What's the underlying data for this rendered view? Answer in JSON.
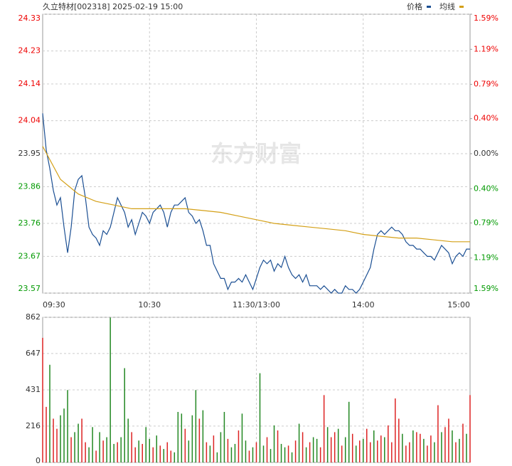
{
  "chart_data": [
    {
      "type": "line",
      "title": "久立特材[002318] 2025-02-19 15:00",
      "watermark": "东方财富",
      "xlim": [
        0,
        240
      ],
      "xticks": [
        {
          "value": 0,
          "label": "09:30"
        },
        {
          "value": 60,
          "label": "10:30"
        },
        {
          "value": 120,
          "label": "11:30/13:00"
        },
        {
          "value": 180,
          "label": "14:00"
        },
        {
          "value": 240,
          "label": "15:00"
        }
      ],
      "ylim": [
        23.57,
        24.33
      ],
      "yticks": [
        24.33,
        24.23,
        24.14,
        24.04,
        23.95,
        23.86,
        23.76,
        23.67,
        23.57
      ],
      "y2lim": [
        -1.59,
        1.59
      ],
      "y2ticks": [
        {
          "value": 1.59,
          "label": "1.59%"
        },
        {
          "value": 1.19,
          "label": "1.19%"
        },
        {
          "value": 0.79,
          "label": "0.79%"
        },
        {
          "value": 0.4,
          "label": "0.40%"
        },
        {
          "value": 0,
          "label": "0.00%"
        },
        {
          "value": -0.4,
          "label": "0.40%"
        },
        {
          "value": -0.79,
          "label": "0.79%"
        },
        {
          "value": -1.19,
          "label": "1.19%"
        },
        {
          "value": -1.59,
          "label": "1.59%"
        }
      ],
      "grid": true,
      "series": [
        {
          "name": "价格",
          "color": "#1b4f93",
          "x": [
            0,
            2,
            4,
            6,
            8,
            10,
            12,
            14,
            16,
            18,
            20,
            22,
            24,
            26,
            28,
            30,
            32,
            34,
            36,
            38,
            40,
            42,
            44,
            46,
            48,
            50,
            52,
            54,
            56,
            58,
            60,
            62,
            64,
            66,
            68,
            70,
            72,
            74,
            76,
            78,
            80,
            82,
            84,
            86,
            88,
            90,
            92,
            94,
            96,
            98,
            100,
            102,
            104,
            106,
            108,
            110,
            112,
            114,
            116,
            118,
            120,
            122,
            124,
            126,
            128,
            130,
            132,
            134,
            136,
            138,
            140,
            142,
            144,
            146,
            148,
            150,
            152,
            154,
            156,
            158,
            160,
            162,
            164,
            166,
            168,
            170,
            172,
            174,
            176,
            178,
            180,
            182,
            184,
            186,
            188,
            190,
            192,
            194,
            196,
            198,
            200,
            202,
            204,
            206,
            208,
            210,
            212,
            214,
            216,
            218,
            220,
            222,
            224,
            226,
            228,
            230,
            232,
            234,
            236,
            238,
            240
          ],
          "values": [
            24.06,
            23.96,
            23.91,
            23.85,
            23.81,
            23.83,
            23.75,
            23.68,
            23.75,
            23.85,
            23.88,
            23.89,
            23.83,
            23.75,
            23.73,
            23.72,
            23.7,
            23.74,
            23.73,
            23.75,
            23.79,
            23.83,
            23.81,
            23.79,
            23.75,
            23.77,
            23.73,
            23.76,
            23.79,
            23.78,
            23.76,
            23.79,
            23.8,
            23.81,
            23.79,
            23.75,
            23.79,
            23.81,
            23.81,
            23.82,
            23.83,
            23.79,
            23.78,
            23.76,
            23.77,
            23.74,
            23.7,
            23.7,
            23.65,
            23.63,
            23.61,
            23.61,
            23.58,
            23.6,
            23.6,
            23.61,
            23.6,
            23.62,
            23.6,
            23.58,
            23.61,
            23.64,
            23.66,
            23.65,
            23.66,
            23.63,
            23.65,
            23.64,
            23.67,
            23.64,
            23.62,
            23.61,
            23.62,
            23.6,
            23.62,
            23.59,
            23.59,
            23.59,
            23.58,
            23.59,
            23.58,
            23.57,
            23.58,
            23.57,
            23.57,
            23.59,
            23.58,
            23.58,
            23.57,
            23.58,
            23.6,
            23.62,
            23.64,
            23.69,
            23.73,
            23.74,
            23.73,
            23.74,
            23.75,
            23.74,
            23.74,
            23.73,
            23.71,
            23.7,
            23.7,
            23.69,
            23.69,
            23.68,
            23.67,
            23.67,
            23.66,
            23.68,
            23.7,
            23.69,
            23.68,
            23.65,
            23.67,
            23.68,
            23.67,
            23.69,
            23.69
          ]
        },
        {
          "name": "均线",
          "color": "#d4a017",
          "x": [
            0,
            10,
            20,
            30,
            40,
            50,
            60,
            70,
            80,
            90,
            100,
            110,
            120,
            130,
            140,
            150,
            160,
            170,
            180,
            190,
            200,
            210,
            220,
            230,
            240
          ],
          "values": [
            23.97,
            23.88,
            23.84,
            23.82,
            23.81,
            23.8,
            23.8,
            23.8,
            23.8,
            23.795,
            23.79,
            23.78,
            23.77,
            23.76,
            23.755,
            23.75,
            23.745,
            23.74,
            23.73,
            23.725,
            23.72,
            23.72,
            23.715,
            23.71,
            23.71
          ]
        }
      ]
    },
    {
      "type": "bar",
      "xlim": [
        0,
        240
      ],
      "ylim": [
        0,
        862
      ],
      "yticks": [
        0,
        216,
        431,
        647,
        862
      ],
      "grid": true,
      "x": [
        0,
        2,
        4,
        6,
        8,
        10,
        12,
        14,
        16,
        18,
        20,
        22,
        24,
        26,
        28,
        30,
        32,
        34,
        36,
        38,
        40,
        42,
        44,
        46,
        48,
        50,
        52,
        54,
        56,
        58,
        60,
        62,
        64,
        66,
        68,
        70,
        72,
        74,
        76,
        78,
        80,
        82,
        84,
        86,
        88,
        90,
        92,
        94,
        96,
        98,
        100,
        102,
        104,
        106,
        108,
        110,
        112,
        114,
        116,
        118,
        120,
        122,
        124,
        126,
        128,
        130,
        132,
        134,
        136,
        138,
        140,
        142,
        144,
        146,
        148,
        150,
        152,
        154,
        156,
        158,
        160,
        162,
        164,
        166,
        168,
        170,
        172,
        174,
        176,
        178,
        180,
        182,
        184,
        186,
        188,
        190,
        192,
        194,
        196,
        198,
        200,
        202,
        204,
        206,
        208,
        210,
        212,
        214,
        216,
        218,
        220,
        222,
        224,
        226,
        228,
        230,
        232,
        234,
        236,
        238,
        240
      ],
      "values": [
        740,
        330,
        580,
        260,
        200,
        280,
        320,
        430,
        150,
        180,
        230,
        260,
        120,
        90,
        210,
        70,
        180,
        130,
        150,
        860,
        110,
        120,
        150,
        560,
        260,
        180,
        90,
        130,
        110,
        210,
        140,
        90,
        160,
        100,
        80,
        120,
        70,
        60,
        300,
        290,
        200,
        130,
        280,
        430,
        260,
        310,
        120,
        100,
        160,
        60,
        180,
        300,
        140,
        90,
        110,
        190,
        290,
        130,
        70,
        90,
        120,
        530,
        100,
        150,
        80,
        220,
        190,
        110,
        90,
        100,
        60,
        130,
        230,
        180,
        90,
        120,
        150,
        140,
        90,
        400,
        210,
        150,
        180,
        200,
        100,
        150,
        360,
        170,
        100,
        130,
        140,
        200,
        120,
        190,
        130,
        160,
        150,
        220,
        120,
        380,
        260,
        170,
        100,
        120,
        190,
        180,
        170,
        140,
        100,
        160,
        120,
        340,
        180,
        210,
        260,
        190,
        120,
        140,
        230,
        170,
        400
      ],
      "colors": [
        "#d22",
        "#d22",
        "#282",
        "#d22",
        "#d22",
        "#282",
        "#282",
        "#282",
        "#d22",
        "#282",
        "#282",
        "#d22",
        "#d22",
        "#282",
        "#282",
        "#d22",
        "#282",
        "#d22",
        "#282",
        "#282",
        "#282",
        "#d22",
        "#282",
        "#282",
        "#282",
        "#d22",
        "#d22",
        "#282",
        "#d22",
        "#282",
        "#282",
        "#d22",
        "#282",
        "#d22",
        "#282",
        "#d22",
        "#d22",
        "#282",
        "#282",
        "#282",
        "#d22",
        "#282",
        "#282",
        "#282",
        "#d22",
        "#282",
        "#d22",
        "#282",
        "#d22",
        "#282",
        "#282",
        "#282",
        "#d22",
        "#282",
        "#282",
        "#d22",
        "#282",
        "#282",
        "#d22",
        "#282",
        "#d22",
        "#282",
        "#282",
        "#d22",
        "#282",
        "#282",
        "#d22",
        "#282",
        "#282",
        "#d22",
        "#282",
        "#d22",
        "#282",
        "#d22",
        "#282",
        "#d22",
        "#282",
        "#282",
        "#d22",
        "#d22",
        "#282",
        "#d22",
        "#d22",
        "#282",
        "#d22",
        "#282",
        "#282",
        "#d22",
        "#282",
        "#d22",
        "#282",
        "#d22",
        "#d22",
        "#282",
        "#d22",
        "#d22",
        "#282",
        "#d22",
        "#d22",
        "#d22",
        "#d22",
        "#282",
        "#d22",
        "#d22",
        "#282",
        "#d22",
        "#d22",
        "#282",
        "#d22",
        "#d22",
        "#282",
        "#d22",
        "#282",
        "#d22",
        "#d22",
        "#282",
        "#d22",
        "#282",
        "#d22",
        "#282",
        "#d22"
      ]
    }
  ]
}
